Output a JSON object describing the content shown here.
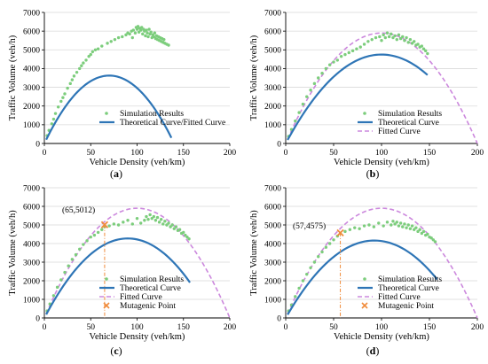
{
  "axis": {
    "xlabel": "Vehicle Density (veh/km)",
    "ylabel": "Traffic Volume (veh/h)",
    "xlim": [
      0,
      200
    ],
    "ylim": [
      0,
      7000
    ],
    "xticks": [
      0,
      50,
      100,
      150,
      200
    ],
    "yticks": [
      0,
      1000,
      2000,
      3000,
      4000,
      5000,
      6000,
      7000
    ]
  },
  "colors": {
    "simulation": "#7ccd7c",
    "theoretical": "#2e75b6",
    "fitted": "#cc88dd",
    "mutagenic": "#f08c3c",
    "annotation_line": "#f08c3c"
  },
  "chart_data": [
    {
      "type": "scatter",
      "panel_label": "(a)",
      "legend": [
        "Simulation Results",
        "Theoretical Curve/Fitted Curve"
      ],
      "theoretical": {
        "vf": 103.6,
        "kj": 140,
        "kmax": 137
      },
      "fitted": null,
      "mutagenic_point": null,
      "simulation_points": [
        [
          3,
          420
        ],
        [
          5,
          700
        ],
        [
          8,
          1050
        ],
        [
          10,
          1300
        ],
        [
          12,
          1600
        ],
        [
          15,
          1950
        ],
        [
          18,
          2250
        ],
        [
          20,
          2450
        ],
        [
          22,
          2650
        ],
        [
          25,
          2950
        ],
        [
          28,
          3200
        ],
        [
          30,
          3400
        ],
        [
          32,
          3600
        ],
        [
          35,
          3800
        ],
        [
          38,
          4000
        ],
        [
          40,
          4150
        ],
        [
          42,
          4300
        ],
        [
          45,
          4450
        ],
        [
          48,
          4650
        ],
        [
          50,
          4750
        ],
        [
          52,
          4900
        ],
        [
          55,
          5000
        ],
        [
          58,
          5050
        ],
        [
          62,
          5200
        ],
        [
          68,
          5350
        ],
        [
          72,
          5450
        ],
        [
          76,
          5550
        ],
        [
          80,
          5650
        ],
        [
          84,
          5700
        ],
        [
          88,
          5800
        ],
        [
          90,
          5900
        ],
        [
          92,
          5850
        ],
        [
          94,
          6000
        ],
        [
          95,
          5650
        ],
        [
          96,
          6050
        ],
        [
          98,
          5900
        ],
        [
          99,
          6200
        ],
        [
          100,
          6100
        ],
        [
          101,
          6250
        ],
        [
          102,
          5950
        ],
        [
          103,
          6150
        ],
        [
          104,
          6050
        ],
        [
          105,
          6200
        ],
        [
          106,
          5850
        ],
        [
          107,
          6100
        ],
        [
          108,
          6000
        ],
        [
          109,
          5750
        ],
        [
          110,
          6050
        ],
        [
          111,
          5900
        ],
        [
          112,
          5700
        ],
        [
          113,
          6100
        ],
        [
          114,
          5850
        ],
        [
          115,
          5950
        ],
        [
          116,
          5650
        ],
        [
          117,
          5800
        ],
        [
          118,
          5700
        ],
        [
          119,
          5900
        ],
        [
          120,
          5600
        ],
        [
          121,
          5750
        ],
        [
          122,
          5550
        ],
        [
          123,
          5700
        ],
        [
          124,
          5500
        ],
        [
          125,
          5650
        ],
        [
          126,
          5450
        ],
        [
          127,
          5600
        ],
        [
          128,
          5400
        ],
        [
          129,
          5550
        ],
        [
          130,
          5350
        ],
        [
          132,
          5300
        ],
        [
          134,
          5250
        ]
      ]
    },
    {
      "type": "scatter",
      "panel_label": "(b)",
      "legend": [
        "Simulation Results",
        "Theoretical Curve",
        "Fitted Curve"
      ],
      "theoretical": {
        "vf": 95,
        "kj": 200,
        "kmax": 148
      },
      "fitted": {
        "vf": 118,
        "kj": 200,
        "kmax": 200
      },
      "mutagenic_point": null,
      "simulation_points": [
        [
          3,
          380
        ],
        [
          6,
          750
        ],
        [
          10,
          1200
        ],
        [
          14,
          1650
        ],
        [
          18,
          2100
        ],
        [
          22,
          2500
        ],
        [
          26,
          2850
        ],
        [
          30,
          3200
        ],
        [
          34,
          3500
        ],
        [
          38,
          3750
        ],
        [
          42,
          4000
        ],
        [
          46,
          4200
        ],
        [
          50,
          4350
        ],
        [
          54,
          4450
        ],
        [
          58,
          4650
        ],
        [
          62,
          4750
        ],
        [
          66,
          4850
        ],
        [
          70,
          4950
        ],
        [
          74,
          5050
        ],
        [
          78,
          5150
        ],
        [
          82,
          5300
        ],
        [
          86,
          5450
        ],
        [
          90,
          5550
        ],
        [
          94,
          5650
        ],
        [
          98,
          5700
        ],
        [
          100,
          5500
        ],
        [
          102,
          5800
        ],
        [
          104,
          5650
        ],
        [
          106,
          5900
        ],
        [
          108,
          5700
        ],
        [
          110,
          5850
        ],
        [
          112,
          5650
        ],
        [
          114,
          5750
        ],
        [
          116,
          5550
        ],
        [
          118,
          5800
        ],
        [
          120,
          5600
        ],
        [
          122,
          5700
        ],
        [
          124,
          5500
        ],
        [
          126,
          5650
        ],
        [
          128,
          5400
        ],
        [
          130,
          5550
        ],
        [
          132,
          5350
        ],
        [
          134,
          5450
        ],
        [
          136,
          5250
        ],
        [
          138,
          5300
        ],
        [
          140,
          5150
        ],
        [
          142,
          5200
        ],
        [
          144,
          5050
        ],
        [
          146,
          4950
        ],
        [
          148,
          4800
        ]
      ]
    },
    {
      "type": "scatter",
      "panel_label": "(c)",
      "legend": [
        "Simulation Results",
        "Theoretical Curve",
        "Fitted Curve",
        "Mutagenic Point"
      ],
      "theoretical": {
        "vf": 95,
        "kj": 180,
        "kmax": 157
      },
      "fitted": {
        "vf": 118,
        "kj": 200,
        "kmax": 200
      },
      "mutagenic_point": {
        "x": 65,
        "y": 5012,
        "label": "(65,5012)"
      },
      "simulation_points": [
        [
          3,
          380
        ],
        [
          6,
          750
        ],
        [
          10,
          1200
        ],
        [
          14,
          1650
        ],
        [
          18,
          2050
        ],
        [
          22,
          2450
        ],
        [
          26,
          2800
        ],
        [
          30,
          3150
        ],
        [
          34,
          3400
        ],
        [
          38,
          3700
        ],
        [
          42,
          3950
        ],
        [
          46,
          4150
        ],
        [
          50,
          4350
        ],
        [
          54,
          4450
        ],
        [
          58,
          4600
        ],
        [
          62,
          4750
        ],
        [
          65,
          4900
        ],
        [
          70,
          4950
        ],
        [
          75,
          5050
        ],
        [
          80,
          5000
        ],
        [
          85,
          5150
        ],
        [
          90,
          5250
        ],
        [
          95,
          5050
        ],
        [
          100,
          5350
        ],
        [
          104,
          5100
        ],
        [
          108,
          5250
        ],
        [
          110,
          5450
        ],
        [
          112,
          5300
        ],
        [
          114,
          5550
        ],
        [
          116,
          5350
        ],
        [
          118,
          5450
        ],
        [
          120,
          5250
        ],
        [
          122,
          5400
        ],
        [
          124,
          5150
        ],
        [
          126,
          5300
        ],
        [
          128,
          5050
        ],
        [
          130,
          5200
        ],
        [
          132,
          5000
        ],
        [
          134,
          5100
        ],
        [
          136,
          4900
        ],
        [
          138,
          5000
        ],
        [
          140,
          4800
        ],
        [
          142,
          4900
        ],
        [
          144,
          4700
        ],
        [
          146,
          4750
        ],
        [
          148,
          4550
        ],
        [
          150,
          4600
        ],
        [
          152,
          4450
        ],
        [
          154,
          4350
        ],
        [
          156,
          4250
        ]
      ]
    },
    {
      "type": "scatter",
      "panel_label": "(d)",
      "legend": [
        "Simulation Results",
        "Theoretical Curve",
        "Fitted Curve",
        "Mutagenic Point"
      ],
      "theoretical": {
        "vf": 90,
        "kj": 185,
        "kmax": 158
      },
      "fitted": {
        "vf": 118,
        "kj": 200,
        "kmax": 200
      },
      "mutagenic_point": {
        "x": 57,
        "y": 4575,
        "label": "(57,4575)"
      },
      "simulation_points": [
        [
          3,
          380
        ],
        [
          6,
          700
        ],
        [
          10,
          1150
        ],
        [
          14,
          1600
        ],
        [
          18,
          2000
        ],
        [
          22,
          2350
        ],
        [
          26,
          2700
        ],
        [
          30,
          3000
        ],
        [
          34,
          3300
        ],
        [
          38,
          3550
        ],
        [
          42,
          3800
        ],
        [
          46,
          4000
        ],
        [
          50,
          4200
        ],
        [
          54,
          4400
        ],
        [
          57,
          4550
        ],
        [
          62,
          4650
        ],
        [
          67,
          4750
        ],
        [
          72,
          4850
        ],
        [
          77,
          4800
        ],
        [
          82,
          4950
        ],
        [
          87,
          5000
        ],
        [
          92,
          4900
        ],
        [
          97,
          5100
        ],
        [
          102,
          4950
        ],
        [
          106,
          5150
        ],
        [
          110,
          5000
        ],
        [
          112,
          5200
        ],
        [
          114,
          5050
        ],
        [
          116,
          5150
        ],
        [
          118,
          4950
        ],
        [
          120,
          5100
        ],
        [
          122,
          4900
        ],
        [
          124,
          5050
        ],
        [
          126,
          4850
        ],
        [
          128,
          5000
        ],
        [
          130,
          4800
        ],
        [
          132,
          4950
        ],
        [
          134,
          4750
        ],
        [
          136,
          4850
        ],
        [
          138,
          4650
        ],
        [
          140,
          4750
        ],
        [
          142,
          4550
        ],
        [
          144,
          4650
        ],
        [
          146,
          4450
        ],
        [
          148,
          4500
        ],
        [
          150,
          4350
        ],
        [
          152,
          4300
        ],
        [
          154,
          4200
        ],
        [
          156,
          4100
        ]
      ]
    }
  ]
}
